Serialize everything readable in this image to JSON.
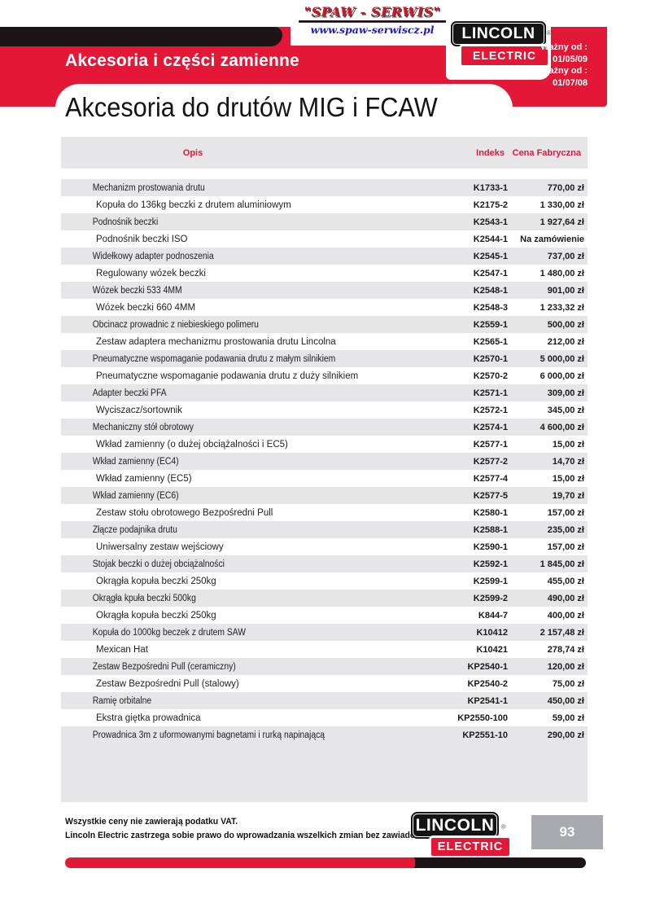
{
  "header": {
    "spaw": {
      "name": "\"SPAW - SERWIS\"",
      "url": "www.spaw-serwiscz.pl"
    },
    "lincoln": {
      "name": "LINCOLN",
      "sub": "ELECTRIC",
      "reg": "®"
    },
    "validity": {
      "valid_from_label": "Ważny od :",
      "valid_from_date": "01/05/09",
      "previous_label": "Poprzedni cennik ważny od :",
      "previous_date": "01/07/08"
    },
    "section_title": "Akcesoria i części zamienne",
    "page_title": "Akcesoria do drutów MIG i FCAW"
  },
  "table": {
    "columns": {
      "description": "Opis",
      "index": "Indeks",
      "price": "Cena Fabryczna"
    },
    "rows": [
      {
        "description": "Mechanizm prostowania drutu",
        "index": "K1733-1",
        "price": "770,00 zł"
      },
      {
        "description": "Kopuła do 136kg beczki z drutem aluminiowym",
        "index": "K2175-2",
        "price": "1 330,00 zł"
      },
      {
        "description": "Podnośnik beczki",
        "index": "K2543-1",
        "price": "1 927,64 zł"
      },
      {
        "description": "Podnośnik beczki ISO",
        "index": "K2544-1",
        "price": "Na zamówienie"
      },
      {
        "description": "Widełkowy adapter podnoszenia",
        "index": "K2545-1",
        "price": "737,00 zł"
      },
      {
        "description": "Regulowany wózek beczki",
        "index": "K2547-1",
        "price": "1 480,00 zł"
      },
      {
        "description": "Wózek beczki 533 4MM",
        "index": "K2548-1",
        "price": "901,00 zł"
      },
      {
        "description": "Wózek beczki 660 4MM",
        "index": "K2548-3",
        "price": "1 233,32 zł"
      },
      {
        "description": "Obcinacz prowadnic z niebieskiego polimeru",
        "index": "K2559-1",
        "price": "500,00 zł"
      },
      {
        "description": "Zestaw adaptera mechanizmu prostowania drutu Lincolna",
        "index": "K2565-1",
        "price": "212,00 zł"
      },
      {
        "description": "Pneumatyczne wspomaganie podawania drutu z małym silnikiem",
        "index": "K2570-1",
        "price": "5 000,00 zł"
      },
      {
        "description": "Pneumatyczne wspomaganie podawania drutu z duży silnikiem",
        "index": "K2570-2",
        "price": "6 000,00 zł"
      },
      {
        "description": "Adapter beczki PFA",
        "index": "K2571-1",
        "price": "309,00 zł"
      },
      {
        "description": "Wyciszacz/sortownik",
        "index": "K2572-1",
        "price": "345,00 zł"
      },
      {
        "description": "Mechaniczny stół obrotowy",
        "index": "K2574-1",
        "price": "4 600,00 zł"
      },
      {
        "description": "Wkład zamienny (o dużej obciążalności i EC5)",
        "index": "K2577-1",
        "price": "15,00 zł"
      },
      {
        "description": "Wkład zamienny (EC4)",
        "index": "K2577-2",
        "price": "14,70 zł"
      },
      {
        "description": "Wkład zamienny (EC5)",
        "index": "K2577-4",
        "price": "15,00 zł"
      },
      {
        "description": "Wkład zamienny (EC6)",
        "index": "K2577-5",
        "price": "19,70 zł"
      },
      {
        "description": "Zestaw stołu obrotowego Bezpośredni Pull",
        "index": "K2580-1",
        "price": "157,00 zł"
      },
      {
        "description": "Złącze podajnika drutu",
        "index": "K2588-1",
        "price": "235,00 zł"
      },
      {
        "description": "Uniwersalny zestaw wejściowy",
        "index": "K2590-1",
        "price": "157,00 zł"
      },
      {
        "description": "Stojak beczki o dużej obciążalności",
        "index": "K2592-1",
        "price": "1 845,00 zł"
      },
      {
        "description": "Okrągła kopuła beczki 250kg",
        "index": "K2599-1",
        "price": "455,00 zł"
      },
      {
        "description": "Okrągła kpuła beczki 500kg",
        "index": "K2599-2",
        "price": "490,00 zł"
      },
      {
        "description": "Okrągła kopuła beczki 250kg",
        "index": "K844-7",
        "price": "400,00 zł"
      },
      {
        "description": "Kopuła do 1000kg beczek z drutem SAW",
        "index": "K10412",
        "price": "2 157,48 zł"
      },
      {
        "description": "Mexican Hat",
        "index": "K10421",
        "price": "278,74 zł"
      },
      {
        "description": "Zestaw Bezpośredni Pull (ceramiczny)",
        "index": "KP2540-1",
        "price": "120,00 zł"
      },
      {
        "description": "Zestaw Bezpośredni Pull (stalowy)",
        "index": "KP2540-2",
        "price": "75,00 zł"
      },
      {
        "description": "Ramię orbitalne",
        "index": "KP2541-1",
        "price": "450,00 zł"
      },
      {
        "description": "Ekstra giętka prowadnica",
        "index": "KP2550-100",
        "price": "59,00 zł"
      },
      {
        "description": "Prowadnica 3m z uformowanymi bagnetami i rurką napinającą",
        "index": "KP2551-10",
        "price": "290,00 zł"
      }
    ]
  },
  "footer": {
    "note1": "Wszystkie ceny nie zawierają podatku VAT.",
    "note2": "Lincoln Electric zastrzega sobie prawo do wprowadzania wszelkich zmian bez zawiadomienia.",
    "lincoln": {
      "name": "LINCOLN",
      "sub": "ELECTRIC",
      "reg": "®"
    },
    "page_number": "93"
  },
  "colors": {
    "accent_red": "#e31837",
    "bar_black": "#1c1416",
    "row_gray": "#e6e6e8",
    "page_number_gray": "#a8aaad"
  }
}
